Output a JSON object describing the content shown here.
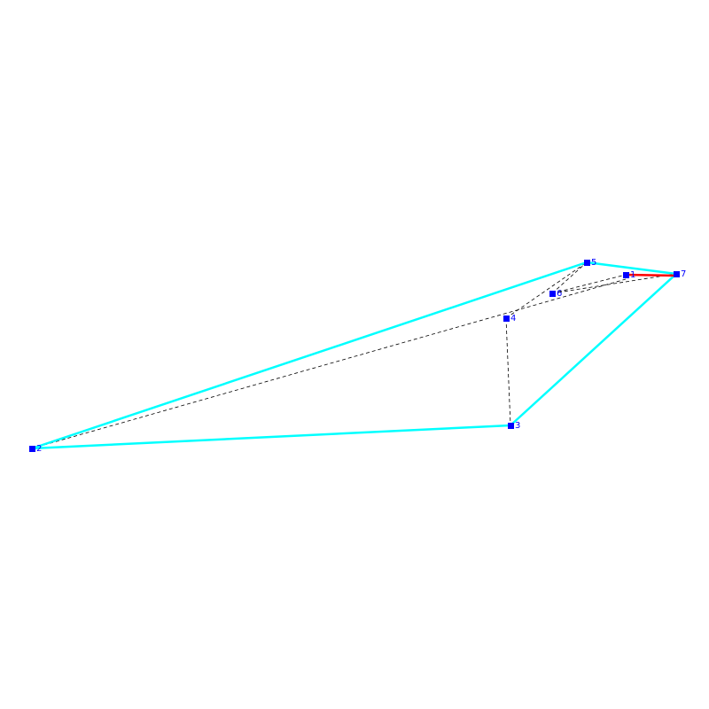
{
  "nodes": [
    {
      "label": "1"
    },
    {
      "label": "2"
    },
    {
      "label": "3"
    },
    {
      "label": "4"
    },
    {
      "label": "5"
    },
    {
      "label": "6"
    },
    {
      "label": "7"
    }
  ]
}
